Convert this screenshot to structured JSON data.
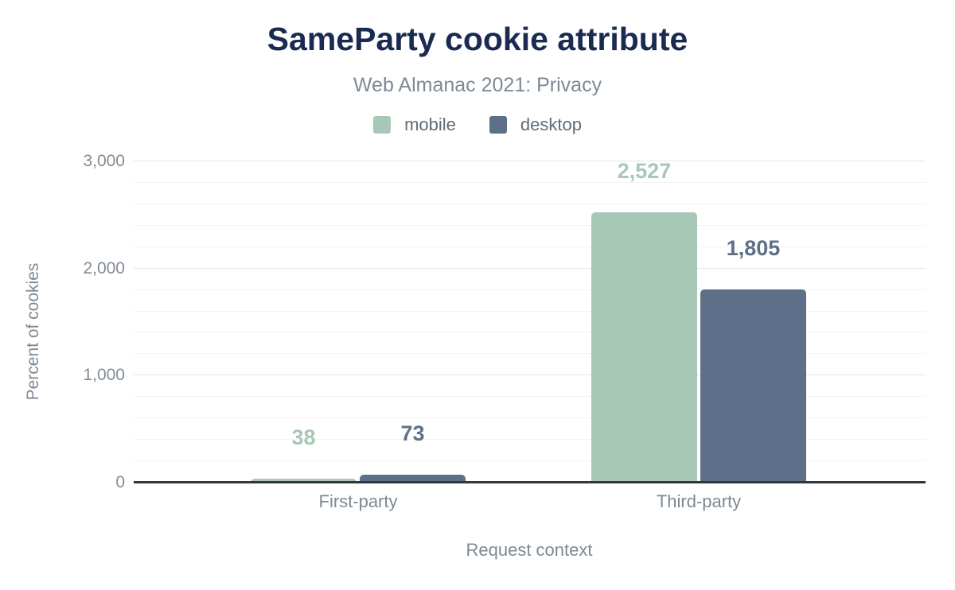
{
  "header": {
    "title": "SameParty cookie attribute",
    "subtitle": "Web Almanac 2021: Privacy"
  },
  "legend": {
    "items": [
      {
        "label": "mobile",
        "color": "#a7c8b7"
      },
      {
        "label": "desktop",
        "color": "#5e7089"
      }
    ]
  },
  "axes": {
    "y_title": "Percent of cookies",
    "x_title": "Request context",
    "y_tick_labels": [
      "0",
      "1,000",
      "2,000",
      "3,000"
    ]
  },
  "chart_data": {
    "type": "bar",
    "title": "SameParty cookie attribute",
    "subtitle": "Web Almanac 2021: Privacy",
    "categories": [
      "First-party",
      "Third-party"
    ],
    "series": [
      {
        "name": "mobile",
        "color": "#a7c8b7",
        "values": [
          38,
          2527
        ],
        "value_labels": [
          "38",
          "2,527"
        ]
      },
      {
        "name": "desktop",
        "color": "#5e7089",
        "values": [
          73,
          1805
        ],
        "value_labels": [
          "73",
          "1,805"
        ]
      }
    ],
    "xlabel": "Request context",
    "ylabel": "Percent of cookies",
    "ylim": [
      0,
      3000
    ],
    "y_major_step": 1000,
    "y_minor_step": 200,
    "grid": true,
    "legend_position": "top",
    "bar_corner_radius": 5
  },
  "colors": {
    "title": "#1a2a50",
    "subtitle": "#7d8995",
    "tick_label": "#828c95",
    "axis_line": "#33373c",
    "gridline_minor": "#f3f3f5",
    "gridline_major": "#e2e4e7",
    "background": "#ffffff"
  }
}
